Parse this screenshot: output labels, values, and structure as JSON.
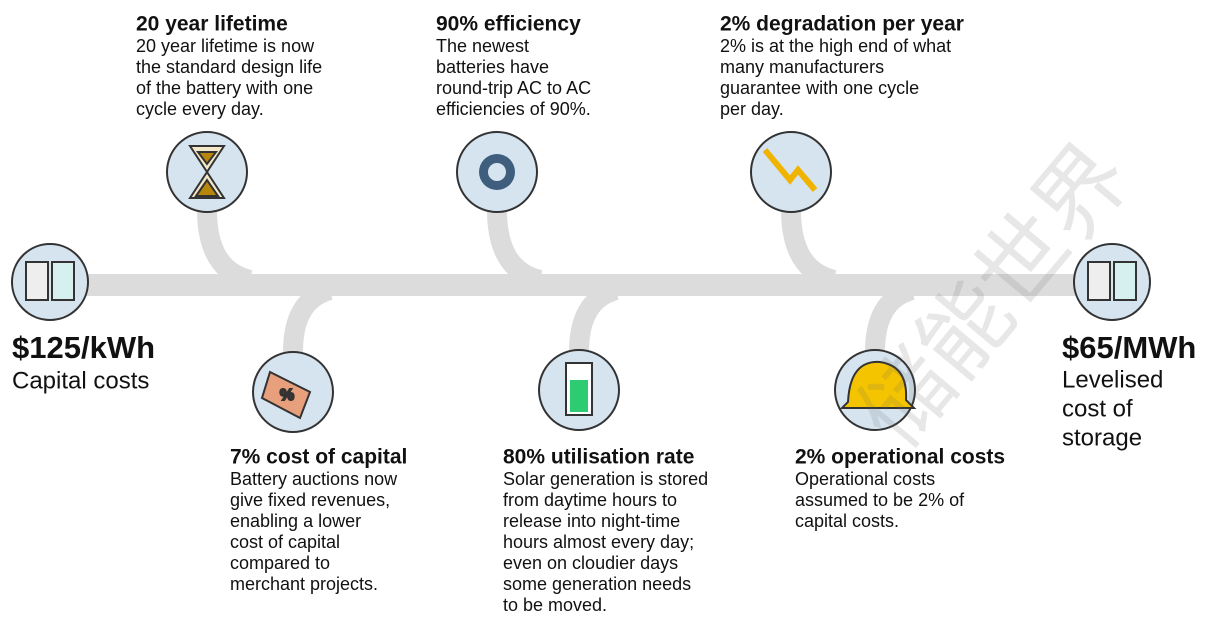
{
  "start": {
    "value": "$125/kWh",
    "label": [
      "Capital costs"
    ]
  },
  "end": {
    "value": "$65/MWh",
    "label": [
      "Levelised",
      "cost of",
      "storage"
    ]
  },
  "top_factors": [
    {
      "title": "20 year lifetime",
      "text": [
        "20 year lifetime is now",
        "the standard design life",
        "of the battery with one",
        "cycle every day."
      ]
    },
    {
      "title": "90% efficiency",
      "text": [
        "The newest",
        "batteries have",
        "round-trip AC to AC",
        "efficiencies of 90%."
      ]
    },
    {
      "title": "2% degradation per year",
      "text": [
        "2% is at the high end of what",
        "many manufacturers",
        "guarantee with one cycle",
        "per day."
      ]
    }
  ],
  "bottom_factors": [
    {
      "title": "7% cost of capital",
      "text": [
        "Battery auctions now",
        "give fixed revenues,",
        "enabling a lower",
        "cost of capital",
        "compared to",
        "merchant projects."
      ]
    },
    {
      "title": "80% utilisation rate",
      "text": [
        "Solar generation is stored",
        "from daytime hours to",
        "release into night-time",
        "hours almost every day;",
        "even on cloudier days",
        "some generation needs",
        "to be moved."
      ]
    },
    {
      "title": "2% operational costs",
      "text": [
        "Operational costs",
        "assumed to be 2% of",
        "capital costs."
      ]
    }
  ],
  "watermark": "储能世界"
}
